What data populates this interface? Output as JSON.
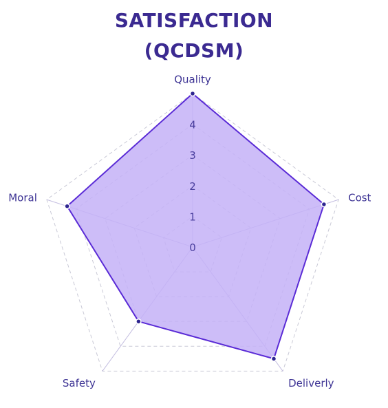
{
  "chart_data": {
    "type": "radar",
    "title_line1": "SATISFACTION",
    "title_line2": "(QCDSM)",
    "categories": [
      "Quality",
      "Cost",
      "Deliverly",
      "Safety",
      "Moral"
    ],
    "series": [
      {
        "values": [
          5,
          4.5,
          4.5,
          3.0,
          4.3
        ]
      }
    ],
    "rlim": [
      0,
      5
    ],
    "ticks": [
      "0",
      "1",
      "2",
      "3",
      "4"
    ],
    "grid": true,
    "colors": {
      "fill": "#c4b1f7",
      "stroke": "#5a2bd6",
      "point": "#2e2590",
      "grid": "#c9c9d6",
      "spoke": "#c3bde0",
      "title": "#3b2a91"
    }
  }
}
